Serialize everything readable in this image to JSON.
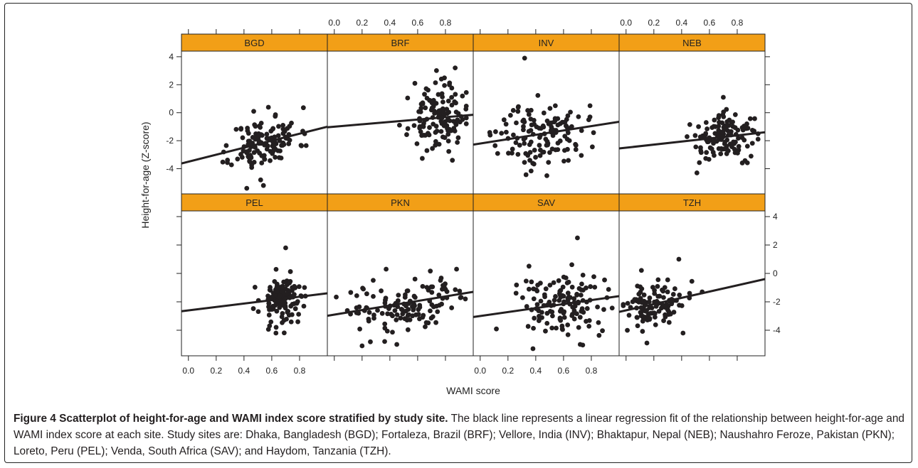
{
  "figure": {
    "caption_title": "Figure 4 Scatterplot of height-for-age and WAMI index score stratified by study site.",
    "caption_body": "The black line represents a linear regression fit of the relationship between height-for-age and WAMI index score at each site. Study sites are: Dhaka, Bangladesh (BGD); Fortaleza, Brazil (BRF); Vellore, India (INV); Bhaktapur, Nepal (NEB); Naushahro Feroze, Pakistan (PKN); Loreto, Peru (PEL); Venda, South Africa (SAV); and Haydom, Tanzania (TZH)."
  },
  "colors": {
    "strip": "#f29f17",
    "points": "#231f20",
    "line": "#231f20"
  },
  "chart_data": {
    "type": "scatter",
    "layout": "lattice 4x2",
    "xlabel": "WAMI score",
    "ylabel": "Height-for-age (Z-score)",
    "xlim": [
      -0.05,
      1.0
    ],
    "ylim": [
      -5.8,
      4.4
    ],
    "x_ticks": [
      0.0,
      0.2,
      0.4,
      0.6,
      0.8
    ],
    "x_tick_labels": [
      "0.0",
      "0.2",
      "0.4",
      "0.6",
      "0.8"
    ],
    "y_ticks": [
      -4,
      -2,
      0,
      2,
      4
    ],
    "y_tick_labels": [
      "-4",
      "-2",
      "0",
      "2",
      "4"
    ],
    "panels": [
      {
        "name": "BGD",
        "fit": {
          "intercept": -3.5,
          "slope": 2.5
        },
        "n_points": 130,
        "x_center": 0.55,
        "x_spread": 0.12,
        "y_spread": 0.9,
        "seed": 11,
        "outliers": [
          [
            0.42,
            -5.4
          ],
          [
            0.52,
            -4.8
          ],
          [
            0.54,
            -5.2
          ],
          [
            0.47,
            0.1
          ]
        ]
      },
      {
        "name": "BRF",
        "fit": {
          "intercept": -1.0,
          "slope": 0.85
        },
        "n_points": 130,
        "x_center": 0.74,
        "x_spread": 0.1,
        "y_spread": 1.1,
        "seed": 23,
        "outliers": [
          [
            0.87,
            3.2
          ],
          [
            0.58,
            2.1
          ],
          [
            0.85,
            -3.4
          ]
        ]
      },
      {
        "name": "INV",
        "fit": {
          "intercept": -2.2,
          "slope": 1.55
        },
        "n_points": 130,
        "x_center": 0.45,
        "x_spread": 0.16,
        "y_spread": 1.15,
        "seed": 37,
        "outliers": [
          [
            0.32,
            3.9
          ],
          [
            0.48,
            -4.5
          ]
        ]
      },
      {
        "name": "NEB",
        "fit": {
          "intercept": -2.5,
          "slope": 1.1
        },
        "n_points": 130,
        "x_center": 0.72,
        "x_spread": 0.12,
        "y_spread": 0.8,
        "seed": 41,
        "outliers": [
          [
            0.7,
            1.1
          ],
          [
            0.51,
            -4.3
          ]
        ]
      },
      {
        "name": "PEL",
        "fit": {
          "intercept": -2.6,
          "slope": 1.2
        },
        "n_points": 130,
        "x_center": 0.68,
        "x_spread": 0.08,
        "y_spread": 0.85,
        "seed": 53,
        "outliers": [
          [
            0.7,
            1.8
          ],
          [
            0.63,
            -4.2
          ]
        ]
      },
      {
        "name": "PKN",
        "fit": {
          "intercept": -2.9,
          "slope": 1.6
        },
        "n_points": 130,
        "x_center": 0.5,
        "x_spread": 0.22,
        "y_spread": 1.05,
        "seed": 61,
        "outliers": [
          [
            0.2,
            -5.1
          ],
          [
            0.45,
            -5.0
          ],
          [
            0.88,
            0.3
          ]
        ]
      },
      {
        "name": "SAV",
        "fit": {
          "intercept": -3.0,
          "slope": 1.4
        },
        "n_points": 130,
        "x_center": 0.62,
        "x_spread": 0.17,
        "y_spread": 1.2,
        "seed": 73,
        "outliers": [
          [
            0.7,
            2.5
          ],
          [
            0.38,
            -5.3
          ],
          [
            0.72,
            -5.0
          ]
        ]
      },
      {
        "name": "TZH",
        "fit": {
          "intercept": -2.6,
          "slope": 2.2
        },
        "n_points": 110,
        "x_center": 0.22,
        "x_spread": 0.12,
        "y_spread": 0.85,
        "seed": 89,
        "outliers": [
          [
            0.38,
            1.0
          ],
          [
            0.15,
            -4.9
          ],
          [
            0.41,
            -4.2
          ]
        ]
      }
    ]
  }
}
